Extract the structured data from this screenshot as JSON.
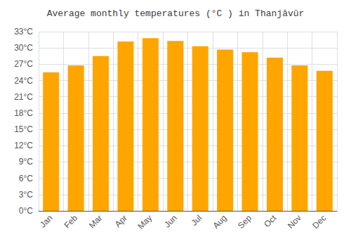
{
  "chart_data": {
    "type": "bar",
    "title": "Average monthly temperatures (°C ) in Thanjāvūr",
    "categories": [
      "Jan",
      "Feb",
      "Mar",
      "Apr",
      "May",
      "Jun",
      "Jul",
      "Aug",
      "Sep",
      "Oct",
      "Nov",
      "Dec"
    ],
    "values": [
      25.5,
      26.8,
      28.5,
      31.2,
      31.8,
      31.3,
      30.3,
      29.7,
      29.2,
      28.2,
      26.8,
      25.8
    ],
    "color": "#FFA500",
    "ylim": [
      0,
      33
    ],
    "yticks": [
      {
        "value": 0,
        "label": "0°C"
      },
      {
        "value": 3,
        "label": "3°C"
      },
      {
        "value": 6,
        "label": "6°C"
      },
      {
        "value": 9,
        "label": "9°C"
      },
      {
        "value": 12,
        "label": "12°C"
      },
      {
        "value": 15,
        "label": "15°C"
      },
      {
        "value": 18,
        "label": "18°C"
      },
      {
        "value": 21,
        "label": "21°C"
      },
      {
        "value": 24,
        "label": "24°C"
      },
      {
        "value": 27,
        "label": "27°C"
      },
      {
        "value": 30,
        "label": "30°C"
      },
      {
        "value": 33,
        "label": "33°C"
      }
    ],
    "grid": true
  }
}
